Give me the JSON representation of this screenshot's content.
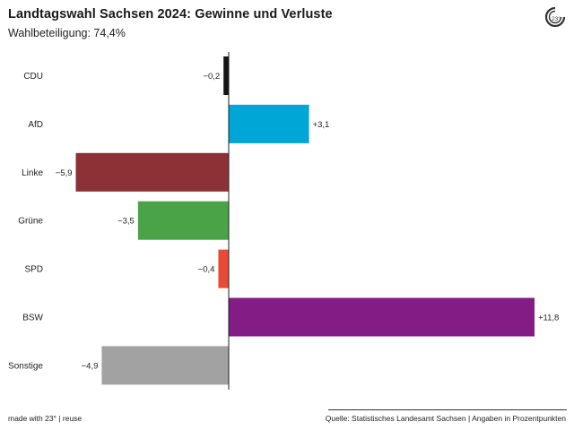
{
  "header": {
    "title": "Landtagswahl Sachsen 2024: Gewinne und Verluste",
    "subtitle": "Wahlbeteiligung: 74,4%"
  },
  "logo": {
    "icon": "23-degrees-logo-icon",
    "text": "23°"
  },
  "footer": {
    "left": "made with 23° | reuse",
    "right": "Quelle: Statistisches Landesamt Sachsen | Angaben in Prozentpunkten"
  },
  "chart_data": {
    "type": "bar",
    "orientation": "horizontal",
    "categories": [
      "CDU",
      "AfD",
      "Linke",
      "Grüne",
      "SPD",
      "BSW",
      "Sonstige"
    ],
    "values": [
      -0.2,
      3.1,
      -5.9,
      -3.5,
      -0.4,
      11.8,
      -4.9
    ],
    "value_labels": [
      "−0,2",
      "+3,1",
      "−5,9",
      "−3,5",
      "−0,4",
      "+11,8",
      "−4,9"
    ],
    "colors": [
      "#151515",
      "#00a6d6",
      "#8e3136",
      "#4aa447",
      "#e84a35",
      "#831d85",
      "#a2a2a2"
    ],
    "xlim": [
      -5.9,
      11.8
    ],
    "grid": false,
    "legend": "none"
  }
}
